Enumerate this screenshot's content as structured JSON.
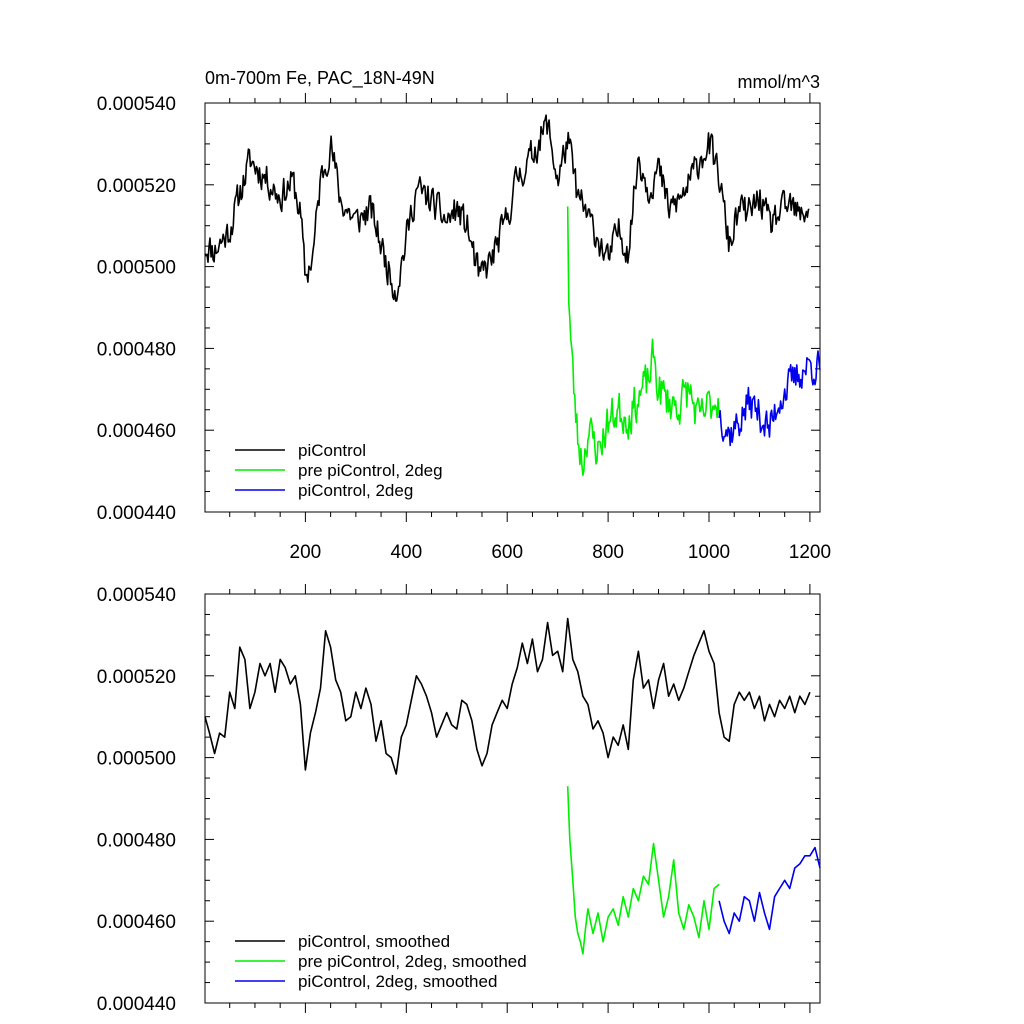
{
  "chart_data": [
    {
      "type": "line",
      "title": "0m-700m Fe, PAC_18N-49N",
      "units": "mmol/m^3",
      "ylim": [
        0.00044,
        0.00054
      ],
      "xlim": [
        1,
        1220
      ],
      "yticks": [
        "0.000440",
        "0.000460",
        "0.000480",
        "0.000500",
        "0.000520",
        "0.000540"
      ],
      "xticks": [
        "200",
        "400",
        "600",
        "800",
        "1000",
        "1200"
      ],
      "show_x_tick_labels": true,
      "legend_position": "bottom-left",
      "series": [
        {
          "name": "piControl",
          "color": "#000000",
          "style": "noisy",
          "seed": 11,
          "x": [
            1,
            20,
            50,
            70,
            90,
            120,
            150,
            175,
            190,
            200,
            215,
            230,
            250,
            270,
            300,
            330,
            360,
            380,
            400,
            420,
            450,
            480,
            500,
            520,
            545,
            570,
            600,
            620,
            640,
            660,
            680,
            700,
            720,
            740,
            760,
            780,
            800,
            820,
            840,
            860,
            880,
            900,
            920,
            940,
            960,
            980,
            1000,
            1020,
            1040,
            1060,
            1080,
            1100,
            1120,
            1140,
            1160,
            1180,
            1200
          ],
          "values": [
            0.000505,
            0.000504,
            0.000509,
            0.000518,
            0.000526,
            0.000522,
            0.000517,
            0.000521,
            0.000513,
            0.000497,
            0.000503,
            0.000521,
            0.00053,
            0.000516,
            0.000511,
            0.000514,
            0.000501,
            0.000494,
            0.000507,
            0.000519,
            0.000516,
            0.000511,
            0.000514,
            0.00051,
            0.000497,
            0.000502,
            0.000512,
            0.000522,
            0.000525,
            0.00053,
            0.000535,
            0.000521,
            0.000531,
            0.000517,
            0.000512,
            0.000507,
            0.000501,
            0.000509,
            0.000504,
            0.000527,
            0.000519,
            0.000524,
            0.000514,
            0.000516,
            0.00052,
            0.000526,
            0.00053,
            0.000522,
            0.000505,
            0.000514,
            0.000513,
            0.000517,
            0.00051,
            0.000513,
            0.000515,
            0.000512,
            0.000515
          ],
          "noise": 3.5e-06
        },
        {
          "name": "pre piControl, 2deg",
          "color": "#00ee00",
          "style": "noisy",
          "seed": 23,
          "x": [
            720,
            722,
            726,
            732,
            740,
            750,
            760,
            780,
            800,
            820,
            840,
            860,
            880,
            890,
            900,
            920,
            940,
            960,
            980,
            1000,
            1020
          ],
          "values": [
            0.000517,
            0.000493,
            0.000482,
            0.00047,
            0.000458,
            0.000452,
            0.00046,
            0.000455,
            0.000462,
            0.000465,
            0.000463,
            0.000468,
            0.000472,
            0.000478,
            0.00047,
            0.000467,
            0.000466,
            0.00047,
            0.000462,
            0.000466,
            0.000468
          ],
          "noise": 4.5e-06
        },
        {
          "name": "piControl, 2deg",
          "color": "#0000ee",
          "style": "noisy",
          "seed": 37,
          "x": [
            1020,
            1040,
            1060,
            1080,
            1100,
            1120,
            1140,
            1160,
            1180,
            1200,
            1220
          ],
          "values": [
            0.000465,
            0.000459,
            0.000462,
            0.000467,
            0.000464,
            0.00046,
            0.000468,
            0.000471,
            0.000474,
            0.000476,
            0.000475
          ],
          "noise": 4e-06
        }
      ]
    },
    {
      "type": "line",
      "title": "",
      "units": "",
      "ylim": [
        0.00044,
        0.00054
      ],
      "xlim": [
        1,
        1220
      ],
      "yticks": [
        "0.000440",
        "0.000460",
        "0.000480",
        "0.000500",
        "0.000520",
        "0.000540"
      ],
      "xticks": [
        "200",
        "400",
        "600",
        "800",
        "1000",
        "1200"
      ],
      "show_x_tick_labels": false,
      "legend_position": "bottom-left",
      "series": [
        {
          "name": "piControl, smoothed",
          "color": "#000000",
          "style": "smooth",
          "x": [
            1,
            10,
            20,
            30,
            40,
            50,
            60,
            70,
            80,
            90,
            100,
            110,
            120,
            130,
            140,
            150,
            160,
            170,
            180,
            190,
            200,
            210,
            220,
            230,
            240,
            250,
            260,
            270,
            280,
            290,
            300,
            310,
            320,
            330,
            340,
            350,
            360,
            370,
            380,
            390,
            400,
            410,
            420,
            430,
            440,
            450,
            460,
            470,
            480,
            490,
            500,
            510,
            520,
            530,
            540,
            550,
            560,
            570,
            580,
            590,
            600,
            610,
            620,
            630,
            640,
            650,
            660,
            670,
            680,
            690,
            700,
            710,
            720,
            730,
            740,
            750,
            760,
            770,
            780,
            790,
            800,
            810,
            820,
            830,
            840,
            850,
            860,
            870,
            880,
            890,
            900,
            910,
            920,
            930,
            940,
            950,
            960,
            970,
            980,
            990,
            1000,
            1010,
            1020,
            1030,
            1040,
            1050,
            1060,
            1070,
            1080,
            1090,
            1100,
            1110,
            1120,
            1130,
            1140,
            1150,
            1160,
            1170,
            1180,
            1190,
            1200
          ],
          "values": [
            0.00051,
            0.000506,
            0.000501,
            0.000506,
            0.000505,
            0.000516,
            0.000512,
            0.000527,
            0.000524,
            0.000512,
            0.000516,
            0.000523,
            0.00052,
            0.000523,
            0.000516,
            0.000524,
            0.000522,
            0.000518,
            0.00052,
            0.000513,
            0.000497,
            0.000506,
            0.000511,
            0.000517,
            0.000531,
            0.000527,
            0.000519,
            0.000516,
            0.000509,
            0.00051,
            0.000516,
            0.000512,
            0.000517,
            0.000513,
            0.000504,
            0.000509,
            0.000501,
            0.0005,
            0.000496,
            0.000505,
            0.000508,
            0.000514,
            0.00052,
            0.000518,
            0.000515,
            0.000511,
            0.000505,
            0.000508,
            0.000511,
            0.000508,
            0.000507,
            0.000514,
            0.000513,
            0.000509,
            0.000502,
            0.000498,
            0.000501,
            0.000508,
            0.000511,
            0.000514,
            0.000512,
            0.000518,
            0.000522,
            0.000528,
            0.000523,
            0.000529,
            0.000521,
            0.000524,
            0.000533,
            0.000525,
            0.000526,
            0.000521,
            0.000534,
            0.000524,
            0.000521,
            0.000515,
            0.000513,
            0.000507,
            0.000509,
            0.000506,
            0.0005,
            0.000505,
            0.000503,
            0.000508,
            0.000502,
            0.000519,
            0.000526,
            0.000517,
            0.000519,
            0.000512,
            0.000519,
            0.000523,
            0.000515,
            0.000518,
            0.000514,
            0.000517,
            0.000521,
            0.000525,
            0.000528,
            0.000531,
            0.000526,
            0.000523,
            0.000511,
            0.000505,
            0.000504,
            0.000513,
            0.000516,
            0.000514,
            0.000516,
            0.000512,
            0.000515,
            0.000509,
            0.000513,
            0.00051,
            0.000514,
            0.000512,
            0.000515,
            0.000511,
            0.000515,
            0.000513,
            0.000516
          ]
        },
        {
          "name": "pre piControl, 2deg, smoothed",
          "color": "#00ee00",
          "style": "smooth",
          "x": [
            720,
            724,
            730,
            735,
            740,
            745,
            750,
            755,
            760,
            770,
            780,
            790,
            800,
            810,
            820,
            830,
            840,
            850,
            860,
            870,
            880,
            890,
            900,
            910,
            920,
            930,
            940,
            950,
            960,
            970,
            980,
            990,
            1000,
            1010,
            1020
          ],
          "values": [
            0.000493,
            0.00048,
            0.00047,
            0.000461,
            0.000457,
            0.000455,
            0.000452,
            0.000458,
            0.000463,
            0.000457,
            0.000462,
            0.000455,
            0.000461,
            0.000463,
            0.000459,
            0.000466,
            0.000461,
            0.000468,
            0.000465,
            0.000471,
            0.000469,
            0.000479,
            0.00047,
            0.000461,
            0.000466,
            0.000475,
            0.000462,
            0.000458,
            0.000464,
            0.000461,
            0.000456,
            0.000465,
            0.000458,
            0.000468,
            0.000469
          ]
        },
        {
          "name": "piControl, 2deg, smoothed",
          "color": "#0000ee",
          "style": "smooth",
          "x": [
            1020,
            1030,
            1040,
            1050,
            1060,
            1070,
            1080,
            1090,
            1100,
            1110,
            1120,
            1130,
            1140,
            1150,
            1160,
            1170,
            1180,
            1190,
            1200,
            1210,
            1220
          ],
          "values": [
            0.000465,
            0.00046,
            0.000457,
            0.000462,
            0.00046,
            0.000466,
            0.000465,
            0.00046,
            0.000467,
            0.000462,
            0.000458,
            0.000466,
            0.000468,
            0.00047,
            0.000468,
            0.000473,
            0.000474,
            0.000476,
            0.000476,
            0.000478,
            0.000473
          ]
        }
      ]
    }
  ]
}
